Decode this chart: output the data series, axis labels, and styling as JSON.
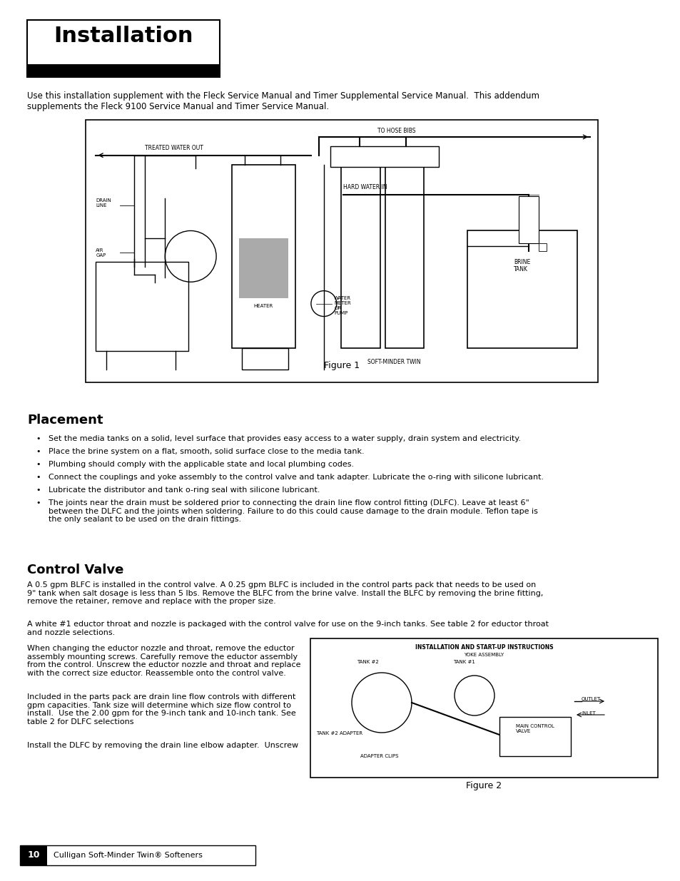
{
  "bg_color": "#ffffff",
  "title": "Installation",
  "intro_text": "Use this installation supplement with the Fleck Service Manual and Timer Supplemental Service Manual.  This addendum\nsupplements the Fleck 9100 Service Manual and Timer Service Manual.",
  "placement_title": "Placement",
  "placement_bullets": [
    "Set the media tanks on a solid, level surface that provides easy access to a water supply, drain system and electricity.",
    "Place the brine system on a flat, smooth, solid surface close to the media tank.",
    "Plumbing should comply with the applicable state and local plumbing codes.",
    "Connect the couplings and yoke assembly to the control valve and tank adapter. Lubricate the o-ring with silicone lubricant.",
    "Lubricate the distributor and tank o-ring seal with silicone lubricant.",
    "The joints near the drain must be soldered prior to connecting the drain line flow control fitting (DLFC). Leave at least 6\"\nbetween the DLFC and the joints when soldering. Failure to do this could cause damage to the drain module. Teflon tape is\nthe only sealant to be used on the drain fittings."
  ],
  "control_valve_title": "Control Valve",
  "cv_text1": "A 0.5 gpm BLFC is installed in the control valve. A 0.25 gpm BLFC is included in the control parts pack that needs to be used on\n9\" tank when salt dosage is less than 5 lbs. Remove the BLFC from the brine valve. Install the BLFC by removing the brine fitting,\nremove the retainer, remove and replace with the proper size.",
  "cv_text2": "A white #1 eductor throat and nozzle is packaged with the control valve for use on the 9-inch tanks. See table 2 for eductor throat\nand nozzle selections.",
  "cv_text3_left": "When changing the eductor nozzle and throat, remove the eductor\nassembly mounting screws. Carefully remove the eductor assembly\nfrom the control. Unscrew the eductor nozzle and throat and replace\nwith the correct size eductor. Reassemble onto the control valve.",
  "cv_text4_left": "Included in the parts pack are drain line flow controls with different\ngpm capacities. Tank size will determine which size flow control to\ninstall.  Use the 2.00 gpm for the 9-inch tank and 10-inch tank. See\ntable 2 for DLFC selections",
  "cv_text5_left": "Install the DLFC by removing the drain line elbow adapter.  Unscrew",
  "footer_page": "10",
  "footer_text": "Culligan Soft-Minder Twin® Softeners",
  "fig1_label": "Figure 1",
  "fig2_label": "Figure 2",
  "fig2_title": "INSTALLATION AND START-UP INSTRUCTIONS",
  "fig2_yoke": "YOKE ASSEMBLY",
  "fig2_tank2": "TANK #2",
  "fig2_tank1": "TANK #1",
  "fig2_adapter": "TANK #2 ADAPTER",
  "fig2_clips": "ADAPTER CLIPS",
  "fig2_main": "MAIN CONTROL\nVALVE",
  "fig2_outlet": "OUTLET",
  "fig2_inlet": "INLET"
}
